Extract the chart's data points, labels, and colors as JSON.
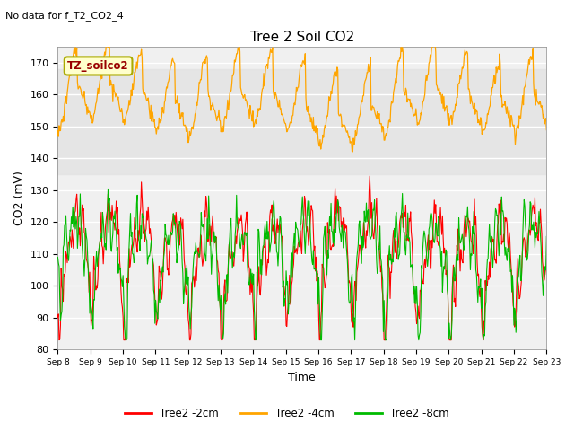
{
  "title": "Tree 2 Soil CO2",
  "subtitle": "No data for f_T2_CO2_4",
  "ylabel": "CO2 (mV)",
  "xlabel": "Time",
  "legend_label": "TZ_soilco2",
  "ylim": [
    80,
    175
  ],
  "color_red": "#FF0000",
  "color_orange": "#FFA500",
  "color_green": "#00BB00",
  "bg_color": "#DCDCDC",
  "plot_bg": "#F0F0F0",
  "band_color": "#E8E8E8",
  "legend_items": [
    "Tree2 -2cm",
    "Tree2 -4cm",
    "Tree2 -8cm"
  ],
  "legend_colors": [
    "#FF0000",
    "#FFA500",
    "#00BB00"
  ],
  "x_tick_labels": [
    "Sep 8",
    "Sep 9",
    "Sep 10",
    "Sep 11",
    "Sep 12",
    "Sep 13",
    "Sep 14",
    "Sep 15",
    "Sep 16",
    "Sep 17",
    "Sep 18",
    "Sep 19",
    "Sep 20",
    "Sep 21",
    "Sep 22",
    "Sep 23"
  ],
  "n_days": 15,
  "subtitle_color": "#000000",
  "tz_box_face": "#FFFFCC",
  "tz_box_edge": "#AAAA00",
  "tz_text_color": "#990000"
}
